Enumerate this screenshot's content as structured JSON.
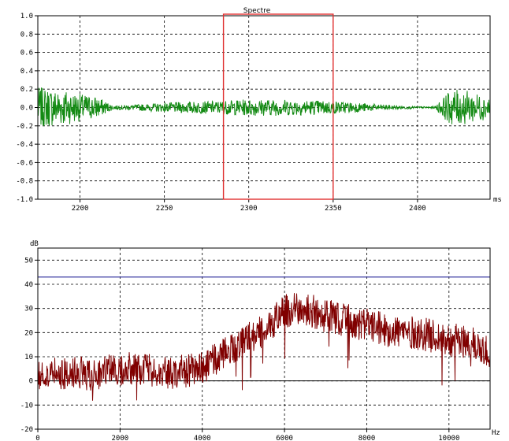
{
  "colors": {
    "background": "#ffffff",
    "axis": "#000000",
    "grid": "#000000",
    "waveform": "#138a13",
    "spectrum": "#800000",
    "selection": "#e03030",
    "reference_line": "#2a2a9a"
  },
  "waveform_panel": {
    "title": "Spectre",
    "x_unit": "ms",
    "selection": {
      "start": 2285,
      "end": 2350
    },
    "chart_data": {
      "type": "line",
      "title": "Spectre",
      "xlabel": "ms",
      "ylabel": "",
      "xlim": [
        2175,
        2443
      ],
      "ylim": [
        -1.0,
        1.0
      ],
      "x_ticks": [
        "2200",
        "2250",
        "2300",
        "2350",
        "2400"
      ],
      "y_ticks": [
        "1.0",
        "0.8",
        "0.6",
        "0.4",
        "0.2",
        "0.0",
        "-0.2",
        "-0.4",
        "-0.6",
        "-0.8",
        "-1.0"
      ],
      "grid": true,
      "series": [
        {
          "x": [
            2175,
            2190,
            2200,
            2210,
            2220,
            2240,
            2260,
            2280,
            2300,
            2320,
            2340,
            2360,
            2380,
            2400,
            2410,
            2420,
            2430,
            2443
          ],
          "envelope": [
            0.22,
            0.2,
            0.15,
            0.12,
            0.02,
            0.04,
            0.06,
            0.07,
            0.09,
            0.09,
            0.08,
            0.06,
            0.03,
            0.01,
            0.01,
            0.2,
            0.18,
            0.12
          ]
        }
      ]
    }
  },
  "spectrum_panel": {
    "x_unit": "Hz",
    "reference_level_db": 43,
    "chart_data": {
      "type": "line",
      "title": "",
      "xlabel": "Hz",
      "ylabel": "dB",
      "xlim": [
        0,
        11000
      ],
      "ylim": [
        -20,
        55
      ],
      "x_ticks": [
        "0",
        "2000",
        "4000",
        "6000",
        "8000",
        "10000"
      ],
      "y_ticks": [
        "50",
        "40",
        "30",
        "20",
        "10",
        "0",
        "-10",
        "-20"
      ],
      "grid": true,
      "series": [
        {
          "x": [
            0,
            500,
            1000,
            1500,
            2000,
            2500,
            3000,
            3500,
            4000,
            4500,
            5000,
            5500,
            6000,
            6500,
            7000,
            7500,
            8000,
            8500,
            9000,
            9500,
            10000,
            10500,
            11000
          ],
          "values": [
            2,
            3,
            3,
            3,
            5,
            5,
            3,
            4,
            5,
            11,
            17,
            21,
            29,
            30,
            27,
            25,
            23,
            21,
            20,
            19,
            17,
            16,
            12
          ]
        }
      ]
    }
  }
}
